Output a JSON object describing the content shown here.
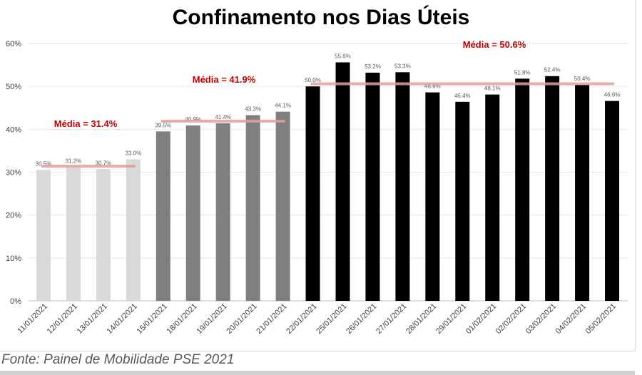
{
  "chart_data": {
    "type": "bar",
    "title": "Confinamento nos Dias Úteis",
    "xlabel": "",
    "ylabel": "",
    "ylim": [
      0,
      60
    ],
    "yticks": [
      "0%",
      "10%",
      "20%",
      "30%",
      "40%",
      "50%",
      "60%"
    ],
    "grid": true,
    "categories": [
      "11/01/2021",
      "12/01/2021",
      "13/01/2021",
      "14/01/2021",
      "15/01/2021",
      "18/01/2021",
      "19/01/2021",
      "20/01/2021",
      "21/01/2021",
      "22/01/2021",
      "25/01/2021",
      "26/01/2021",
      "27/01/2021",
      "28/01/2021",
      "29/01/2021",
      "01/02/2021",
      "02/02/2021",
      "03/02/2021",
      "04/02/2021",
      "05/02/2021"
    ],
    "values": [
      30.5,
      31.2,
      30.7,
      33.0,
      39.5,
      40.9,
      41.4,
      43.3,
      44.1,
      50.0,
      55.6,
      53.2,
      53.3,
      48.6,
      46.4,
      48.1,
      51.8,
      52.4,
      50.4,
      46.6
    ],
    "value_labels": [
      "30.5%",
      "31.2%",
      "30.7%",
      "33.0%",
      "39.5%",
      "40.9%",
      "41.4%",
      "43.3%",
      "44.1%",
      "50.0%",
      "55.6%",
      "53.2%",
      "53.3%",
      "48.6%",
      "46.4%",
      "48.1%",
      "51.8%",
      "52.4%",
      "50.4%",
      "46.6%"
    ],
    "groups": [
      {
        "start": 0,
        "end": 3,
        "color": "#d9d9d9",
        "mean": 31.4,
        "mean_label": "Média = 31.4%"
      },
      {
        "start": 4,
        "end": 8,
        "color": "#7f7f7f",
        "mean": 41.9,
        "mean_label": "Média = 41.9%"
      },
      {
        "start": 9,
        "end": 19,
        "color": "#000000",
        "mean": 50.6,
        "mean_label": "Média = 50.6%"
      }
    ],
    "mean_line_color": "#e0a0a0",
    "mean_text_color": "#c00000"
  },
  "source": "Fonte: Painel de Mobilidade PSE 2021"
}
